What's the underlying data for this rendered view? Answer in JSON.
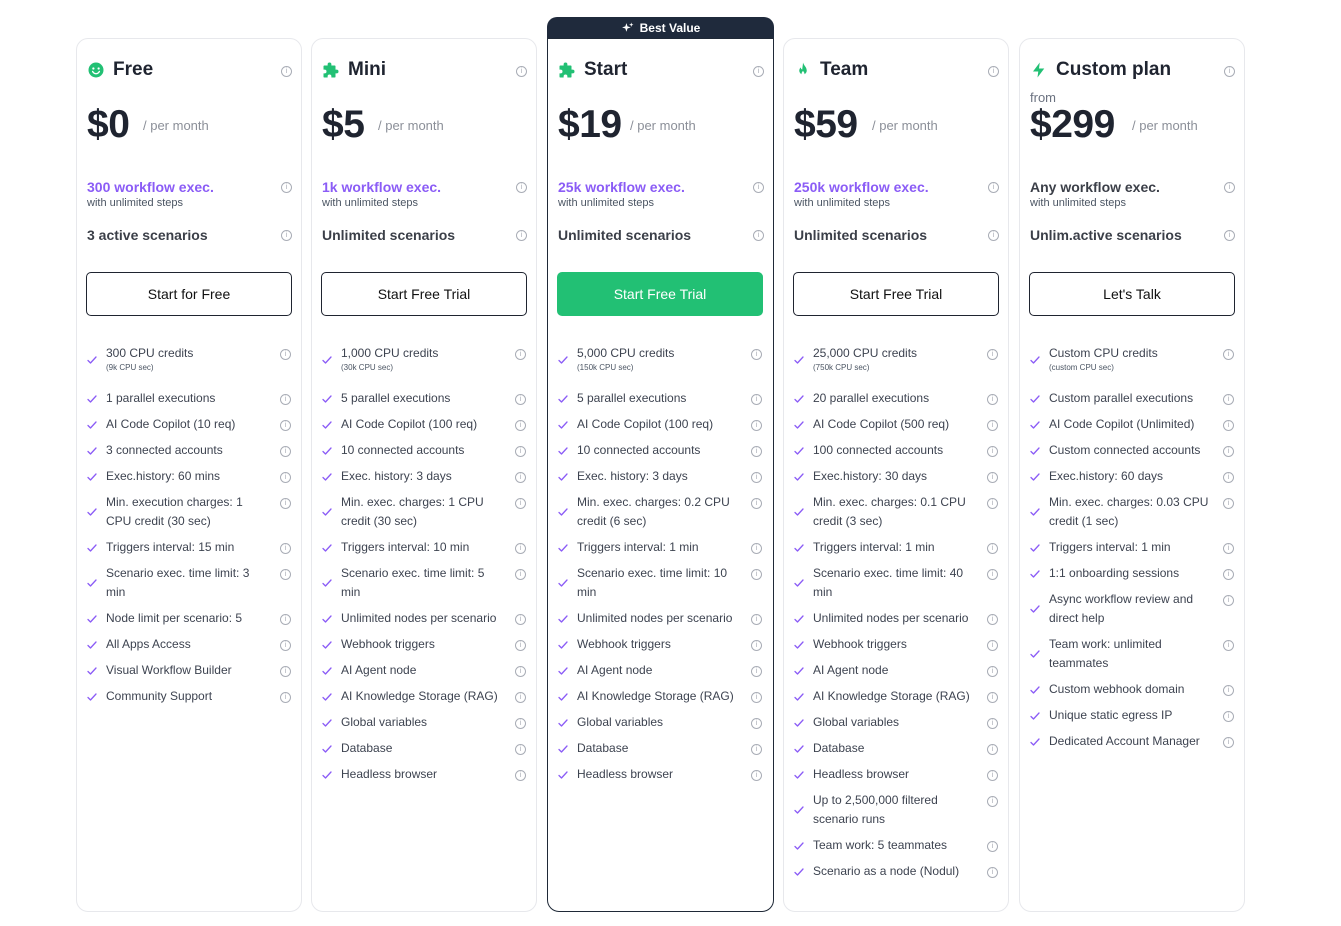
{
  "badge": {
    "label": "Best Value"
  },
  "plans": [
    {
      "id": "free",
      "name": "Free",
      "icon": "smiley-icon",
      "icon_color": "#22c074",
      "from": "",
      "price": "$0",
      "per": "/ per month",
      "exec": "300 workflow exec.",
      "exec_sub": "with unlimited steps",
      "exec_color": "#8b5cf6",
      "scenarios": "3 active scenarios",
      "cta": "Start for Free",
      "cta_primary": false,
      "features": [
        {
          "t": "300 CPU credits",
          "s": "(9k CPU sec)"
        },
        {
          "t": "1 parallel executions"
        },
        {
          "t": "AI Code Copilot (10 req)"
        },
        {
          "t": "3 connected accounts"
        },
        {
          "t": "Exec.history: 60 mins"
        },
        {
          "t": "Min. execution charges: 1 CPU credit (30 sec)",
          "lines": 2
        },
        {
          "t": "Triggers interval: 15 min"
        },
        {
          "t": "Scenario exec. time limit: 3 min",
          "lines": 2
        },
        {
          "t": "Node limit per scenario: 5"
        },
        {
          "t": "All Apps Access"
        },
        {
          "t": "Visual Workflow Builder"
        },
        {
          "t": "Community Support"
        }
      ]
    },
    {
      "id": "mini",
      "name": "Mini",
      "icon": "puzzle-icon",
      "icon_color": "#22c074",
      "from": "",
      "price": "$5",
      "per": "/ per month",
      "exec": "1k workflow exec.",
      "exec_sub": "with unlimited steps",
      "exec_color": "#8b5cf6",
      "scenarios": "Unlimited scenarios",
      "cta": "Start Free Trial",
      "cta_primary": false,
      "features": [
        {
          "t": "1,000 CPU credits",
          "s": "(30k CPU sec)"
        },
        {
          "t": "5 parallel executions"
        },
        {
          "t": "AI Code Copilot (100 req)"
        },
        {
          "t": "10 connected accounts"
        },
        {
          "t": "Exec. history: 3 days"
        },
        {
          "t": "Min. exec. charges: 1 CPU credit (30 sec)",
          "lines": 2
        },
        {
          "t": "Triggers interval: 10 min"
        },
        {
          "t": "Scenario exec. time limit: 5 min",
          "lines": 2
        },
        {
          "t": "Unlimited nodes per scenario"
        },
        {
          "t": "Webhook triggers"
        },
        {
          "t": "AI Agent node"
        },
        {
          "t": "AI Knowledge Storage (RAG)"
        },
        {
          "t": "Global variables"
        },
        {
          "t": "Database"
        },
        {
          "t": "Headless browser"
        }
      ]
    },
    {
      "id": "start",
      "name": "Start",
      "icon": "puzzle-icon",
      "icon_color": "#22c074",
      "from": "",
      "price": "$19",
      "per": "/ per month",
      "exec": "25k workflow exec.",
      "exec_sub": "with unlimited steps",
      "exec_color": "#8b5cf6",
      "scenarios": "Unlimited scenarios",
      "cta": "Start Free Trial",
      "cta_primary": true,
      "features": [
        {
          "t": "5,000 CPU credits",
          "s": "(150k CPU sec)"
        },
        {
          "t": "5 parallel executions"
        },
        {
          "t": "AI Code Copilot (100 req)"
        },
        {
          "t": "10 connected accounts"
        },
        {
          "t": "Exec. history: 3 days"
        },
        {
          "t": "Min. exec. charges: 0.2 CPU credit (6 sec)",
          "lines": 2
        },
        {
          "t": "Triggers interval: 1 min"
        },
        {
          "t": "Scenario exec. time limit: 10 min",
          "lines": 2
        },
        {
          "t": "Unlimited nodes per scenario"
        },
        {
          "t": "Webhook triggers"
        },
        {
          "t": "AI Agent node"
        },
        {
          "t": "AI Knowledge Storage (RAG)"
        },
        {
          "t": "Global variables"
        },
        {
          "t": "Database"
        },
        {
          "t": "Headless browser"
        }
      ]
    },
    {
      "id": "team",
      "name": "Team",
      "icon": "fire-icon",
      "icon_color": "#22c074",
      "from": "",
      "price": "$59",
      "per": "/ per month",
      "exec": "250k workflow exec.",
      "exec_sub": "with unlimited steps",
      "exec_color": "#8b5cf6",
      "scenarios": "Unlimited scenarios",
      "cta": "Start Free Trial",
      "cta_primary": false,
      "features": [
        {
          "t": "25,000 CPU credits",
          "s": "(750k CPU sec)"
        },
        {
          "t": "20 parallel executions"
        },
        {
          "t": "AI Code Copilot (500 req)"
        },
        {
          "t": "100 connected accounts"
        },
        {
          "t": "Exec.history: 30 days"
        },
        {
          "t": "Min. exec. charges: 0.1 CPU credit (3 sec)",
          "lines": 2
        },
        {
          "t": "Triggers interval: 1 min"
        },
        {
          "t": "Scenario exec. time limit: 40 min",
          "lines": 2
        },
        {
          "t": "Unlimited nodes per scenario"
        },
        {
          "t": "Webhook triggers"
        },
        {
          "t": "AI Agent node"
        },
        {
          "t": "AI Knowledge Storage (RAG)"
        },
        {
          "t": "Global variables"
        },
        {
          "t": "Database"
        },
        {
          "t": "Headless browser"
        },
        {
          "t": "Up to 2,500,000 filtered scenario runs",
          "lines": 2
        },
        {
          "t": "Team work: 5 teammates"
        },
        {
          "t": "Scenario as a node (Nodul)"
        }
      ]
    },
    {
      "id": "custom",
      "name": "Custom plan",
      "icon": "bolt-icon",
      "icon_color": "#22c074",
      "from": "from",
      "price": "$299",
      "per": "/ per month",
      "exec": "Any workflow exec.",
      "exec_sub": "with unlimited steps",
      "exec_color": "#3b3f48",
      "scenarios": "Unlim.active scenarios",
      "cta": "Let's Talk",
      "cta_primary": false,
      "features": [
        {
          "t": "Custom CPU credits",
          "s": "(custom CPU sec)"
        },
        {
          "t": "Custom parallel executions"
        },
        {
          "t": "AI Code Copilot (Unlimited)"
        },
        {
          "t": "Custom connected accounts"
        },
        {
          "t": "Exec.history: 60 days"
        },
        {
          "t": "Min. exec. charges: 0.03 CPU credit (1 sec)",
          "lines": 2
        },
        {
          "t": "Triggers interval: 1 min"
        },
        {
          "t": "1:1 onboarding sessions"
        },
        {
          "t": "Async workflow review and direct help",
          "lines": 2
        },
        {
          "t": "Team work: unlimited teammates",
          "lines": 2
        },
        {
          "t": "Custom webhook domain"
        },
        {
          "t": "Unique static egress IP"
        },
        {
          "t": "Dedicated Account Manager"
        }
      ]
    }
  ],
  "colors": {
    "accent": "#22c074",
    "purple": "#8b5cf6",
    "dark": "#1f2a3c"
  }
}
